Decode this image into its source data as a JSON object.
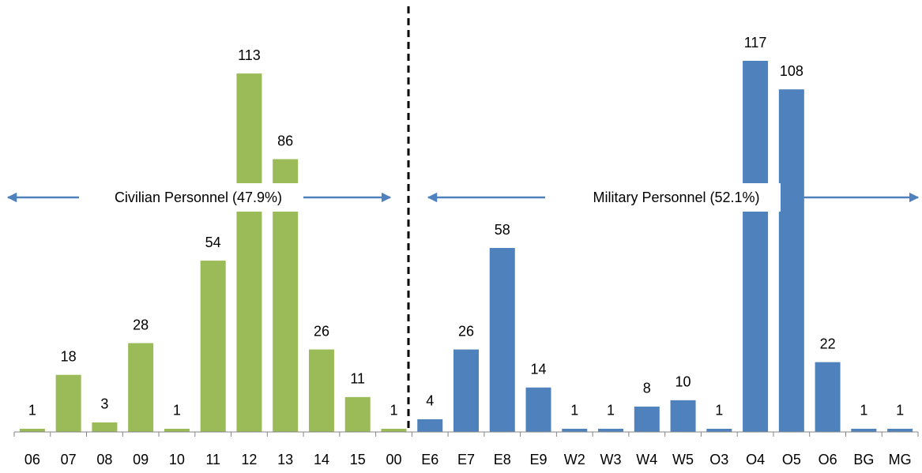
{
  "chart_data": {
    "type": "bar",
    "categories": [
      "06",
      "07",
      "08",
      "09",
      "10",
      "11",
      "12",
      "13",
      "14",
      "15",
      "00",
      "E6",
      "E7",
      "E8",
      "E9",
      "W2",
      "W3",
      "W4",
      "W5",
      "O3",
      "O4",
      "O5",
      "O6",
      "BG",
      "MG"
    ],
    "values": [
      1,
      18,
      3,
      28,
      1,
      54,
      113,
      86,
      26,
      11,
      1,
      4,
      26,
      58,
      14,
      1,
      1,
      8,
      10,
      1,
      117,
      108,
      22,
      1,
      1
    ],
    "colors": [
      "#9bbb59",
      "#9bbb59",
      "#9bbb59",
      "#9bbb59",
      "#9bbb59",
      "#9bbb59",
      "#9bbb59",
      "#9bbb59",
      "#9bbb59",
      "#9bbb59",
      "#9bbb59",
      "#4f81bd",
      "#4f81bd",
      "#4f81bd",
      "#4f81bd",
      "#4f81bd",
      "#4f81bd",
      "#4f81bd",
      "#4f81bd",
      "#4f81bd",
      "#4f81bd",
      "#4f81bd",
      "#4f81bd",
      "#4f81bd",
      "#4f81bd"
    ],
    "ylim": [
      0,
      120
    ],
    "annotations": [
      "Civilian Personnel (47.9%)",
      "Military Personnel (52.1%)"
    ]
  }
}
